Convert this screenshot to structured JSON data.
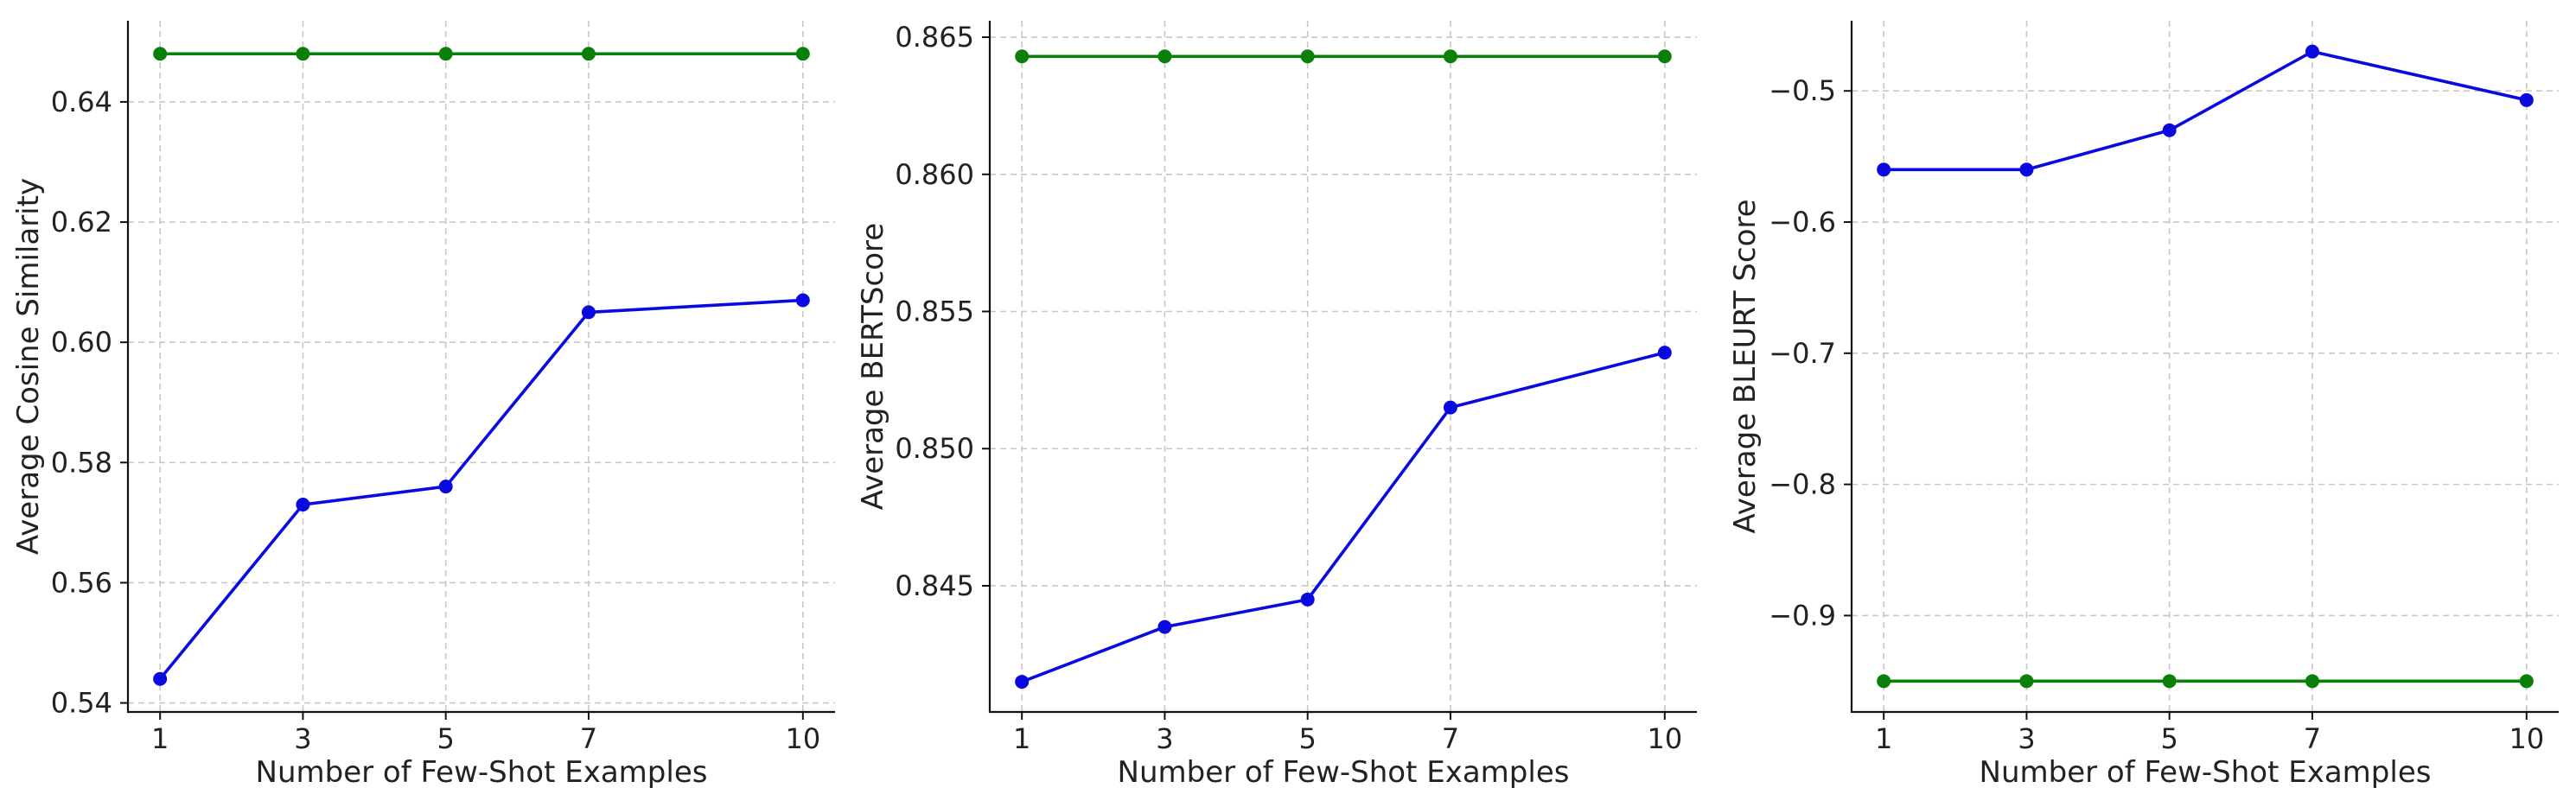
{
  "colors": {
    "series_a": "#0a0ae0",
    "series_b": "#0a800a"
  },
  "chart_data": [
    {
      "type": "line",
      "xlabel": "Number of Few-Shot Examples",
      "ylabel": "Average Cosine Similarity",
      "x": [
        1,
        3,
        5,
        7,
        10
      ],
      "xticks": [
        "1",
        "3",
        "5",
        "7",
        "10"
      ],
      "xlim": [
        0.55,
        10.45
      ],
      "ylim": [
        0.5385,
        0.6535
      ],
      "yticks": [
        "0.54",
        "0.56",
        "0.58",
        "0.60",
        "0.62",
        "0.64"
      ],
      "ytick_values": [
        0.54,
        0.56,
        0.58,
        0.6,
        0.62,
        0.64
      ],
      "grid": true,
      "series": [
        {
          "values": [
            0.544,
            0.573,
            0.576,
            0.605,
            0.607
          ],
          "color_key": "series_a"
        },
        {
          "values": [
            0.648,
            0.648,
            0.648,
            0.648,
            0.648
          ],
          "color_key": "series_b"
        }
      ]
    },
    {
      "type": "line",
      "xlabel": "Number of Few-Shot Examples",
      "ylabel": "Average BERTScore",
      "x": [
        1,
        3,
        5,
        7,
        10
      ],
      "xticks": [
        "1",
        "3",
        "5",
        "7",
        "10"
      ],
      "xlim": [
        0.55,
        10.45
      ],
      "ylim": [
        0.8404,
        0.8656
      ],
      "yticks": [
        "0.845",
        "0.850",
        "0.855",
        "0.860",
        "0.865"
      ],
      "ytick_values": [
        0.845,
        0.85,
        0.855,
        0.86,
        0.865
      ],
      "grid": true,
      "series": [
        {
          "values": [
            0.8415,
            0.8435,
            0.8445,
            0.8515,
            0.8535
          ],
          "color_key": "series_a"
        },
        {
          "values": [
            0.8643,
            0.8643,
            0.8643,
            0.8643,
            0.8643
          ],
          "color_key": "series_b"
        }
      ]
    },
    {
      "type": "line",
      "xlabel": "Number of Few-Shot Examples",
      "ylabel": "Average BLEURT Score",
      "x": [
        1,
        3,
        5,
        7,
        10
      ],
      "xticks": [
        "1",
        "3",
        "5",
        "7",
        "10"
      ],
      "xlim": [
        0.55,
        10.45
      ],
      "ylim": [
        -0.9735,
        -0.4465
      ],
      "yticks": [
        "−0.9",
        "−0.8",
        "−0.7",
        "−0.6",
        "−0.5"
      ],
      "ytick_values": [
        -0.9,
        -0.8,
        -0.7,
        -0.6,
        -0.5
      ],
      "grid": true,
      "series": [
        {
          "values": [
            -0.56,
            -0.56,
            -0.53,
            -0.47,
            -0.507
          ],
          "color_key": "series_a"
        },
        {
          "values": [
            -0.95,
            -0.95,
            -0.95,
            -0.95,
            -0.95
          ],
          "color_key": "series_b"
        }
      ]
    }
  ]
}
